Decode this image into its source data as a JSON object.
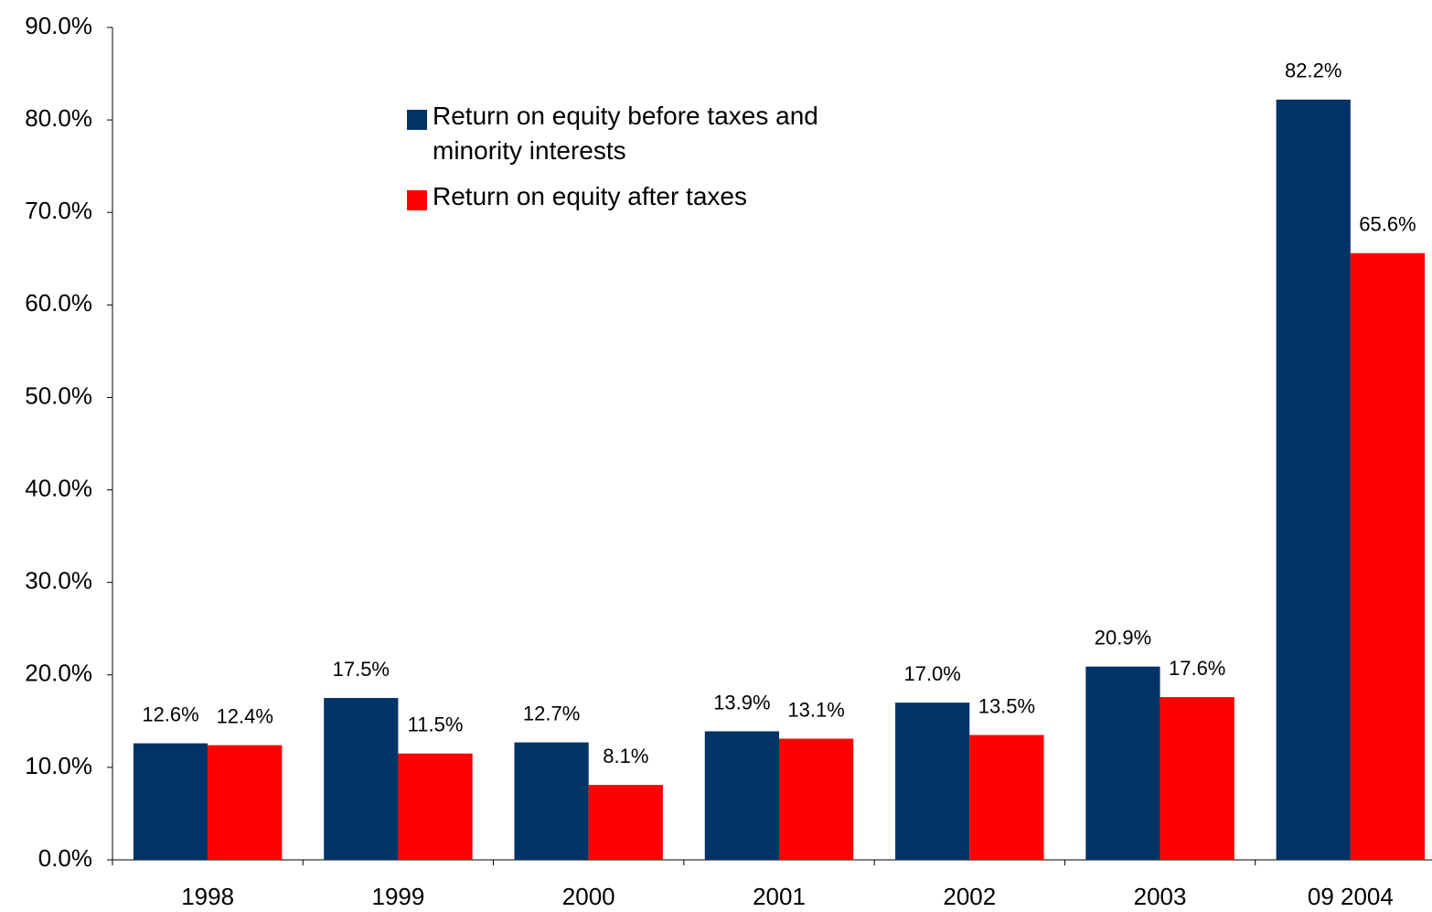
{
  "chart_data": {
    "type": "bar",
    "categories": [
      "1998",
      "1999",
      "2000",
      "2001",
      "2002",
      "2003",
      "09 2004"
    ],
    "series": [
      {
        "name": "Return on equity before taxes and minority interests",
        "color": "#003366",
        "values": [
          12.6,
          17.5,
          12.7,
          13.9,
          17.0,
          20.9,
          82.2
        ],
        "value_labels": [
          "12.6%",
          "17.5%",
          "12.7%",
          "13.9%",
          "17.0%",
          "20.9%",
          "82.2%"
        ]
      },
      {
        "name": "Return on equity after taxes",
        "color": "#ff0000",
        "values": [
          12.4,
          11.5,
          8.1,
          13.1,
          13.5,
          17.6,
          65.6
        ],
        "value_labels": [
          "12.4%",
          "11.5%",
          "8.1%",
          "13.1%",
          "13.5%",
          "17.6%",
          "65.6%"
        ]
      }
    ],
    "ylim": [
      0,
      90
    ],
    "yticks": [
      {
        "value": 0,
        "label": "0.0%"
      },
      {
        "value": 10,
        "label": "10.0%"
      },
      {
        "value": 20,
        "label": "20.0%"
      },
      {
        "value": 30,
        "label": "30.0%"
      },
      {
        "value": 40,
        "label": "40.0%"
      },
      {
        "value": 50,
        "label": "50.0%"
      },
      {
        "value": 60,
        "label": "60.0%"
      },
      {
        "value": 70,
        "label": "70.0%"
      },
      {
        "value": 80,
        "label": "80.0%"
      },
      {
        "value": 90,
        "label": "90.0%"
      }
    ],
    "grid": false,
    "legend": "top"
  }
}
